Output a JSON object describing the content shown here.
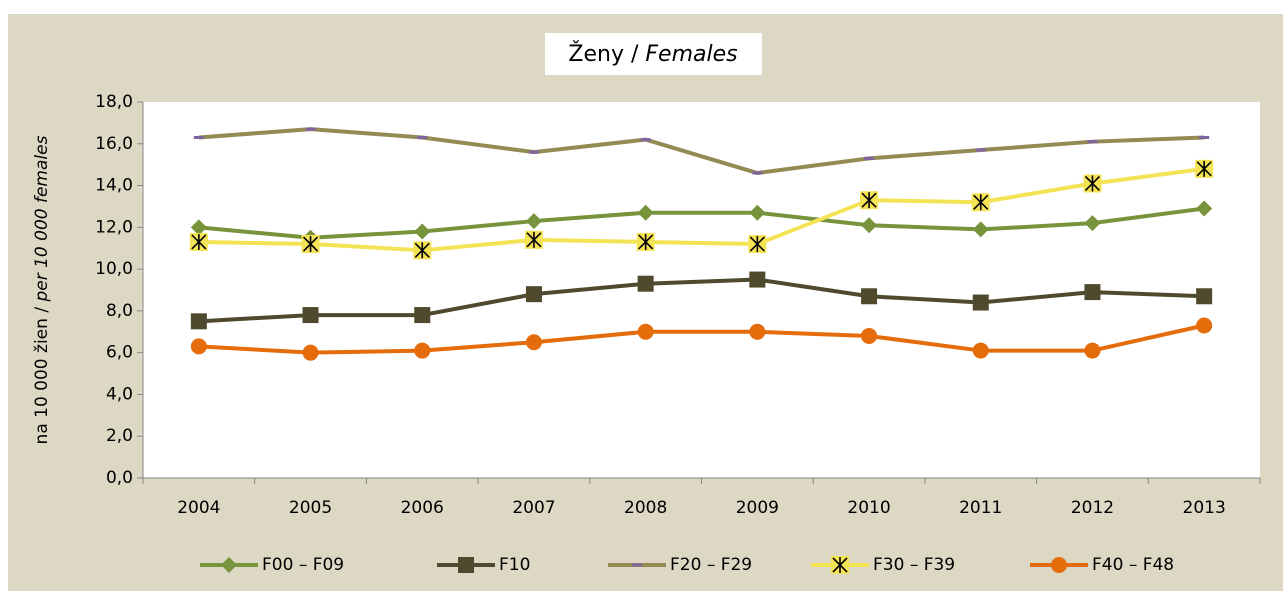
{
  "chart_data": {
    "type": "line",
    "title": {
      "local": "Ženy /",
      "english": "Females"
    },
    "y_label": {
      "local": "na 10 000 žien /",
      "english": "per 10 000 females"
    },
    "categories": [
      "2004",
      "2005",
      "2006",
      "2007",
      "2008",
      "2009",
      "2010",
      "2011",
      "2012",
      "2013"
    ],
    "ylim": [
      0,
      18
    ],
    "yticks": [
      {
        "value": 0,
        "label": "0,0"
      },
      {
        "value": 2,
        "label": "2,0"
      },
      {
        "value": 4,
        "label": "4,0"
      },
      {
        "value": 6,
        "label": "6,0"
      },
      {
        "value": 8,
        "label": "8,0"
      },
      {
        "value": 10,
        "label": "10,0"
      },
      {
        "value": 12,
        "label": "12,0"
      },
      {
        "value": 14,
        "label": "14,0"
      },
      {
        "value": 16,
        "label": "16,0"
      },
      {
        "value": 18,
        "label": "18,0"
      }
    ],
    "series": [
      {
        "name": "F00 – F09",
        "color": "#77933c",
        "marker": "diamond",
        "values": [
          12.0,
          11.5,
          11.8,
          12.3,
          12.7,
          12.7,
          12.1,
          11.9,
          12.2,
          12.9
        ]
      },
      {
        "name": "F10",
        "color": "#4f4a2e",
        "marker": "square",
        "values": [
          7.5,
          7.8,
          7.8,
          8.8,
          9.3,
          9.5,
          8.7,
          8.4,
          8.9,
          8.7
        ]
      },
      {
        "name": "F20 – F29",
        "color": "#948a54",
        "marker": "dash",
        "marker_color": "#8064a2",
        "values": [
          16.3,
          16.7,
          16.3,
          15.6,
          16.2,
          14.6,
          15.3,
          15.7,
          16.1,
          16.3
        ]
      },
      {
        "name": "F30 – F39",
        "color": "#f5e356",
        "marker": "star",
        "values": [
          11.3,
          11.2,
          10.9,
          11.4,
          11.3,
          11.2,
          13.3,
          13.2,
          14.1,
          14.8
        ]
      },
      {
        "name": "F40 – F48",
        "color": "#e46c0a",
        "marker": "circle",
        "values": [
          6.3,
          6.0,
          6.1,
          6.5,
          7.0,
          7.0,
          6.8,
          6.1,
          6.1,
          7.3
        ]
      }
    ]
  }
}
